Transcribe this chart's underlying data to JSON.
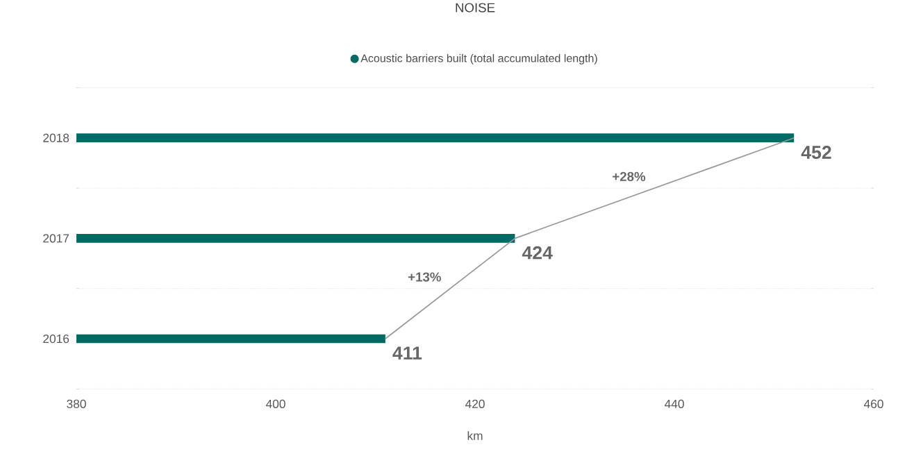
{
  "chart_data": {
    "type": "bar",
    "orientation": "horizontal",
    "title": "NOISE",
    "xlabel": "km",
    "categories": [
      "2018",
      "2017",
      "2016"
    ],
    "series": [
      {
        "name": "Acoustic barriers built (total accumulated length)",
        "color": "#006a64",
        "values": [
          452,
          424,
          411
        ],
        "value_labels": [
          "452",
          "424",
          "411"
        ]
      },
      {
        "type": "line",
        "color": "#999999",
        "values": [
          452,
          424,
          411
        ]
      }
    ],
    "xlim": [
      380,
      460
    ],
    "xticks": [
      380,
      400,
      420,
      440,
      460
    ],
    "grid": "y",
    "legend": "top",
    "annotations": [
      "+28%",
      "+13%"
    ]
  }
}
